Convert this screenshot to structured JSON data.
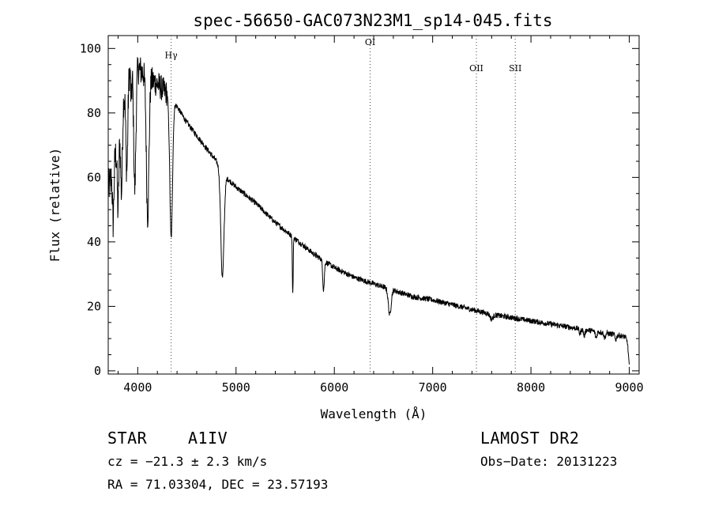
{
  "chart_data": {
    "type": "line",
    "title": "spec-56650-GAC073N23M1_sp14-045.fits",
    "xlabel": "Wavelength (Å)",
    "ylabel": "Flux (relative)",
    "xlim": [
      3700,
      9100
    ],
    "ylim": [
      -1,
      104
    ],
    "xticks": [
      4000,
      5000,
      6000,
      7000,
      8000,
      9000
    ],
    "yticks": [
      0,
      20,
      40,
      60,
      80,
      100
    ],
    "grid": false,
    "continuum": {
      "x": [
        3700,
        3750,
        3800,
        3850,
        3900,
        3950,
        4000,
        4100,
        4200,
        4300,
        4400,
        4500,
        4600,
        4700,
        4800,
        4900,
        5000,
        5200,
        5400,
        5600,
        5800,
        6000,
        6200,
        6400,
        6600,
        6800,
        7000,
        7200,
        7400,
        7600,
        7800,
        8000,
        8200,
        8400,
        8600,
        8800,
        8900,
        8960,
        8980,
        9000
      ],
      "y": [
        56,
        62,
        72,
        84,
        92,
        95,
        94,
        91,
        89,
        86,
        82,
        77,
        73,
        69,
        65,
        60,
        57,
        52,
        46,
        41,
        36,
        32,
        29,
        27,
        25,
        23,
        22,
        20.5,
        19,
        17.5,
        16.5,
        15.5,
        14.5,
        13.5,
        12.5,
        11.5,
        11,
        10.5,
        9,
        2
      ]
    },
    "absorption_lines": [
      {
        "x": 3750,
        "depth": 16,
        "width": 7
      },
      {
        "x": 3800,
        "depth": 22,
        "width": 8
      },
      {
        "x": 3835,
        "depth": 25,
        "width": 9
      },
      {
        "x": 3889,
        "depth": 28,
        "width": 10
      },
      {
        "x": 3934,
        "depth": 10,
        "width": 6
      },
      {
        "x": 3970,
        "depth": 38,
        "width": 11
      },
      {
        "x": 4101,
        "depth": 43,
        "width": 13
      },
      {
        "x": 4340,
        "depth": 43,
        "width": 14
      },
      {
        "x": 4861,
        "depth": 33,
        "width": 16
      },
      {
        "x": 5577,
        "depth": 18,
        "width": 4
      },
      {
        "x": 5890,
        "depth": 9,
        "width": 8
      },
      {
        "x": 6563,
        "depth": 8,
        "width": 14
      },
      {
        "x": 7600,
        "depth": 1.5,
        "width": 15
      },
      {
        "x": 8498,
        "depth": 1.5,
        "width": 8
      },
      {
        "x": 8542,
        "depth": 2,
        "width": 8
      },
      {
        "x": 8662,
        "depth": 2,
        "width": 8
      },
      {
        "x": 8750,
        "depth": 1.5,
        "width": 8
      },
      {
        "x": 8863,
        "depth": 1.5,
        "width": 8
      }
    ],
    "noise": {
      "high_below": 4300,
      "amp_blue": 5,
      "amp_red": 0.6
    },
    "line_markers": [
      {
        "x": 4340,
        "label": "Hγ",
        "label_y": 97
      },
      {
        "x": 6364,
        "label": "OI",
        "label_y": 101
      },
      {
        "x": 7445,
        "label": "OII",
        "label_y": 93
      },
      {
        "x": 7840,
        "label": "SII",
        "label_y": 93
      }
    ],
    "colors": {
      "line": "#000000",
      "background": "#ffffff",
      "marker": "#444444"
    }
  },
  "info": {
    "object_type": "STAR",
    "subclass": "A1IV",
    "survey": "LAMOST DR2",
    "cz": "cz = −21.3 ± 2.3 km/s",
    "obs_date": "Obs−Date: 20131223",
    "coords": "RA =  71.03304, DEC =  23.57193"
  }
}
